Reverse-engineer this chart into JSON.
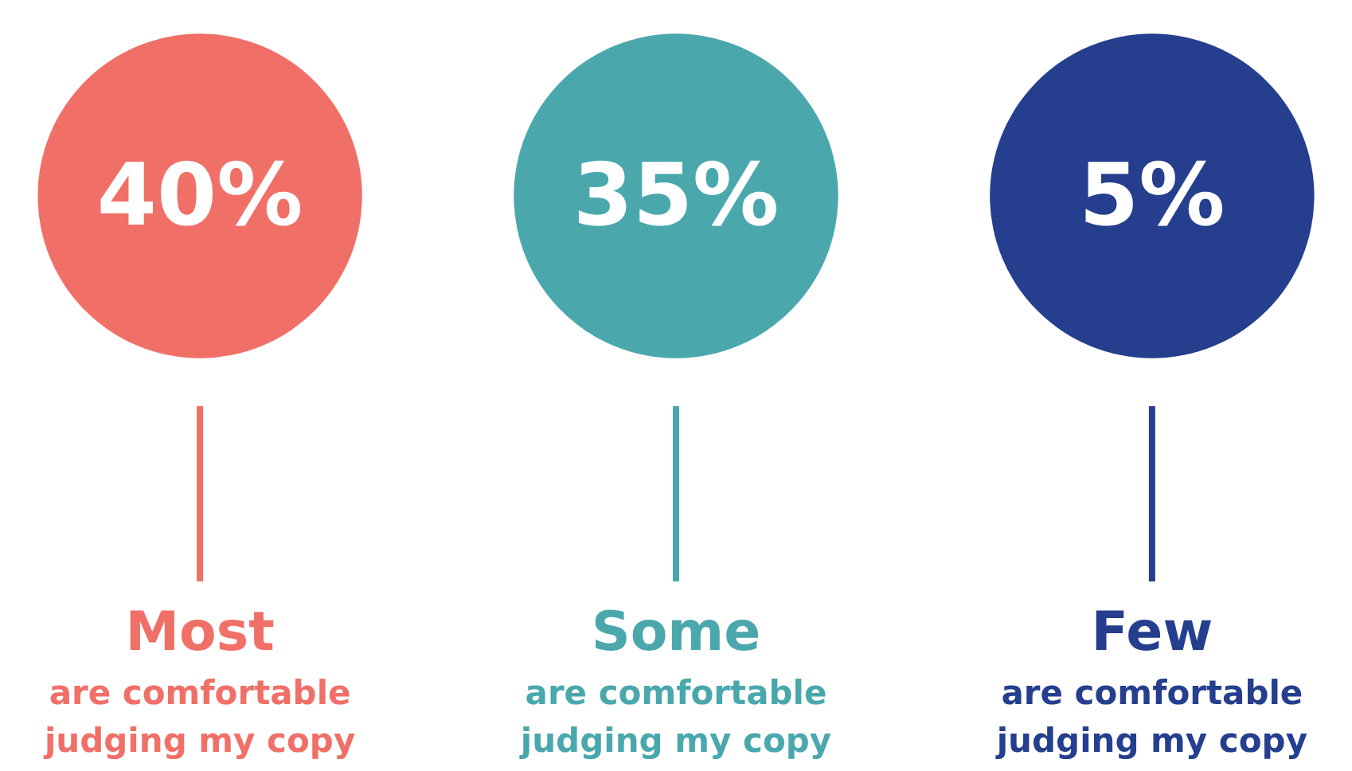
{
  "chart_data": {
    "type": "other",
    "categories": [
      "Most",
      "Some",
      "Few"
    ],
    "values": [
      40,
      35,
      5
    ],
    "value_labels": [
      "40%",
      "35%",
      "5%"
    ],
    "colors": [
      "#f07068",
      "#4aa8ad",
      "#253f8e"
    ],
    "annotations": [
      "are comfortable judging my copy",
      "are comfortable judging my copy",
      "are comfortable judging my copy"
    ]
  }
}
